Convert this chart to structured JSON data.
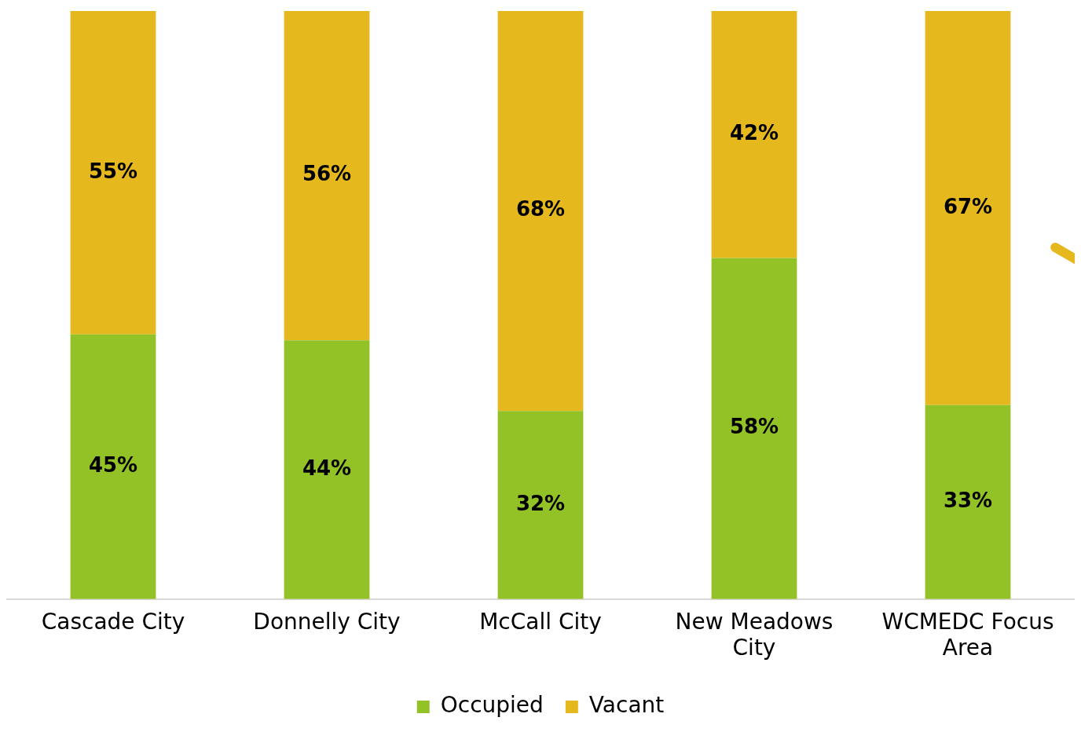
{
  "chart_data": {
    "type": "bar",
    "stacked": true,
    "categories": [
      "Cascade City",
      "Donnelly City",
      "McCall City",
      "New Meadows City",
      "WCMEDC Focus Area"
    ],
    "series": [
      {
        "name": "Occupied",
        "color": "#92c225",
        "values": [
          45,
          44,
          32,
          58,
          33
        ],
        "value_labels": [
          "45%",
          "44%",
          "32%",
          "58%",
          "33%"
        ]
      },
      {
        "name": "Vacant",
        "color": "#e5b91e",
        "values": [
          55,
          56,
          68,
          42,
          67
        ],
        "value_labels": [
          "55%",
          "56%",
          "68%",
          "42%",
          "67%"
        ]
      }
    ],
    "legend": "bottom",
    "grid": false
  }
}
